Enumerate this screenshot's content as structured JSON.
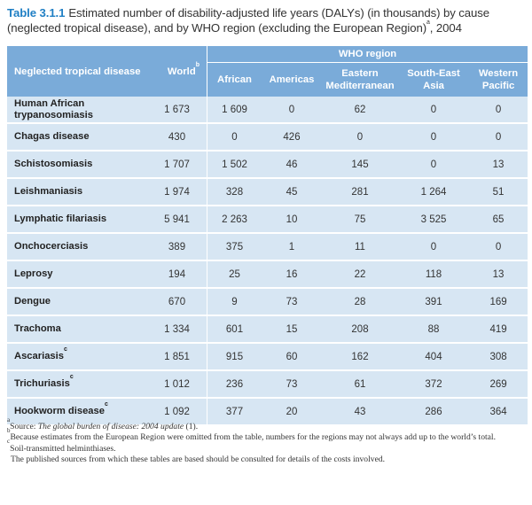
{
  "caption": {
    "number": "Table 3.1.1",
    "text": "Estimated number of disability-adjusted life years (DALYs) (in thousands) by cause (neglected tropical disease), and by WHO region (excluding the European Region)",
    "sup": "a",
    "tail": ", 2004"
  },
  "table": {
    "col_disease": "Neglected tropical disease",
    "col_world": "World",
    "col_world_sup": "b",
    "group": "WHO region",
    "regions": [
      "African",
      "Americas",
      "Eastern Mediterranean",
      "South-East Asia",
      "Western Pacific"
    ],
    "rows": [
      {
        "name": "Human African trypanosomiasis",
        "sup": "",
        "world": "1 673",
        "vals": [
          "1 609",
          "0",
          "62",
          "0",
          "0"
        ]
      },
      {
        "name": "Chagas disease",
        "sup": "",
        "world": "430",
        "vals": [
          "0",
          "426",
          "0",
          "0",
          "0"
        ]
      },
      {
        "name": "Schistosomiasis",
        "sup": "",
        "world": "1 707",
        "vals": [
          "1 502",
          "46",
          "145",
          "0",
          "13"
        ]
      },
      {
        "name": "Leishmaniasis",
        "sup": "",
        "world": "1 974",
        "vals": [
          "328",
          "45",
          "281",
          "1 264",
          "51"
        ]
      },
      {
        "name": "Lymphatic filariasis",
        "sup": "",
        "world": "5 941",
        "vals": [
          "2 263",
          "10",
          "75",
          "3 525",
          "65"
        ]
      },
      {
        "name": "Onchocerciasis",
        "sup": "",
        "world": "389",
        "vals": [
          "375",
          "1",
          "11",
          "0",
          "0"
        ]
      },
      {
        "name": "Leprosy",
        "sup": "",
        "world": "194",
        "vals": [
          "25",
          "16",
          "22",
          "118",
          "13"
        ]
      },
      {
        "name": "Dengue",
        "sup": "",
        "world": "670",
        "vals": [
          "9",
          "73",
          "28",
          "391",
          "169"
        ]
      },
      {
        "name": "Trachoma",
        "sup": "",
        "world": "1 334",
        "vals": [
          "601",
          "15",
          "208",
          "88",
          "419"
        ]
      },
      {
        "name": "Ascariasis",
        "sup": "c",
        "world": "1 851",
        "vals": [
          "915",
          "60",
          "162",
          "404",
          "308"
        ]
      },
      {
        "name": "Trichuriasis",
        "sup": "c",
        "world": "1 012",
        "vals": [
          "236",
          "73",
          "61",
          "372",
          "269"
        ]
      },
      {
        "name": "Hookworm disease",
        "sup": "c",
        "world": "1 092",
        "vals": [
          "377",
          "20",
          "43",
          "286",
          "364"
        ]
      }
    ]
  },
  "footnotes": {
    "a_mark": "a",
    "a_pre": "Source: ",
    "a_title": "The global burden of disease: 2004 update",
    "a_post": " (1).",
    "b_mark": "b",
    "b_text": "Because estimates from the European Region were omitted from the table, numbers for the regions may not always add up to the world’s total.",
    "c_mark": "c",
    "c_text": "Soil-transmitted helminthiases.",
    "note": "The published sources from which these tables are based should be consulted for details of the costs involved."
  },
  "colors": {
    "header": "#7aabd9",
    "row": "#d7e6f3",
    "title_accent": "#1f7fc4"
  }
}
